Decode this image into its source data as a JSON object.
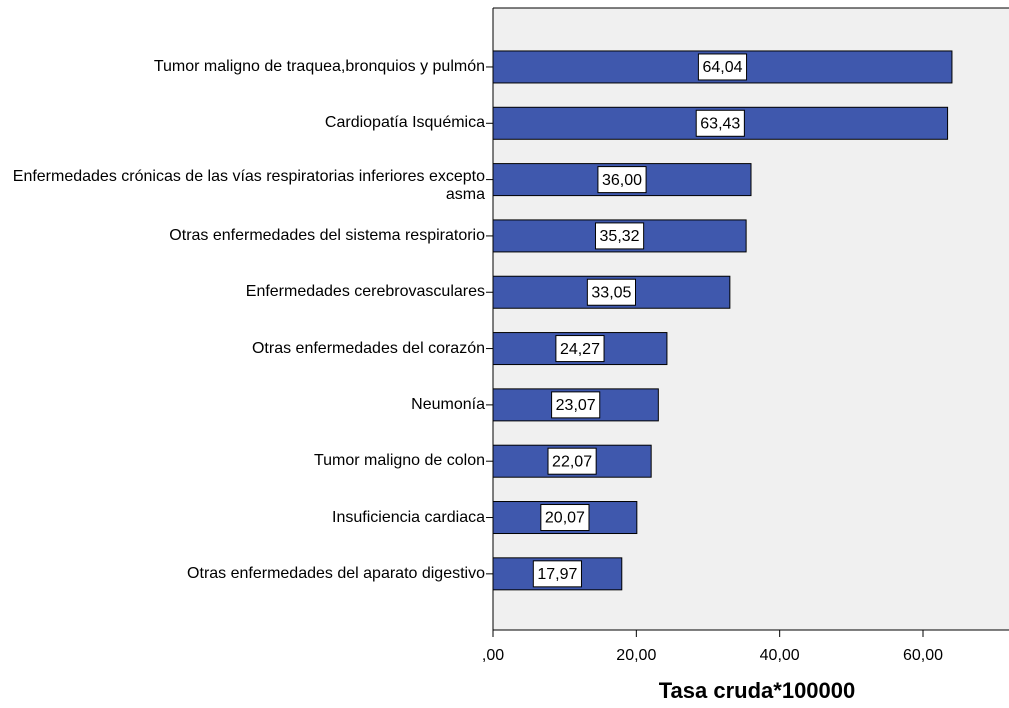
{
  "chart_data": {
    "type": "bar",
    "orientation": "horizontal",
    "x_label": "Tasa cruda*100000",
    "categories": [
      "Tumor maligno de traquea,bronquios y pulmón",
      "Cardiopatía Isquémica",
      "Enfermedades crónicas de las vías respiratorias inferiores excepto asma",
      "Otras enfermedades del sistema respiratorio",
      "Enfermedades cerebrovasculares",
      "Otras enfermedades del corazón",
      "Neumonía",
      "Tumor maligno de colon",
      "Insuficiencia cardiaca",
      "Otras enfermedades del aparato digestivo"
    ],
    "values": [
      64.04,
      63.43,
      36.0,
      35.32,
      33.05,
      24.27,
      23.07,
      22.07,
      20.07,
      17.97
    ],
    "value_labels": [
      "64,04",
      "63,43",
      "36,00",
      "35,32",
      "33,05",
      "24,27",
      "23,07",
      "22,07",
      "20,07",
      "17,97"
    ],
    "color": "#3f58ad",
    "xlim": [
      0,
      72
    ],
    "xticks": [
      {
        "value": 0,
        "label": ",00"
      },
      {
        "value": 20,
        "label": "20,00"
      },
      {
        "value": 40,
        "label": "40,00"
      },
      {
        "value": 60,
        "label": "60,00"
      }
    ]
  }
}
